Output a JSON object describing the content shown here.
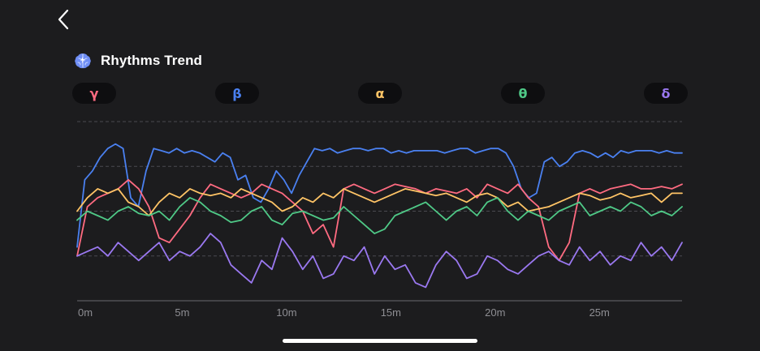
{
  "header": {
    "back_icon": "chevron-left-icon",
    "app_icon": "brain-icon",
    "title": "Rhythms Trend"
  },
  "bands": [
    {
      "symbol": "γ",
      "color": "#ff6b81"
    },
    {
      "symbol": "β",
      "color": "#4a80f0"
    },
    {
      "symbol": "α",
      "color": "#ffc466"
    },
    {
      "symbol": "θ",
      "color": "#4fc987"
    },
    {
      "symbol": "δ",
      "color": "#9a78f0"
    }
  ],
  "chart_data": {
    "type": "line",
    "x_ticks": [
      "0m",
      "5m",
      "10m",
      "15m",
      "20m",
      "25m"
    ],
    "xlim": [
      0,
      29
    ],
    "ylim": [
      0,
      4
    ],
    "grid": true,
    "series": [
      {
        "band": "β",
        "color": "#4a80f0",
        "values": [
          1.2,
          2.7,
          2.9,
          3.2,
          3.4,
          3.5,
          3.4,
          2.3,
          2.1,
          2.9,
          3.4,
          3.35,
          3.3,
          3.4,
          3.3,
          3.35,
          3.3,
          3.2,
          3.1,
          3.3,
          3.2,
          2.7,
          2.8,
          2.3,
          2.2,
          2.5,
          2.9,
          2.7,
          2.4,
          2.8,
          3.1,
          3.4,
          3.35,
          3.4,
          3.3,
          3.35,
          3.4,
          3.4,
          3.35,
          3.4,
          3.4,
          3.3,
          3.35,
          3.3,
          3.35,
          3.35,
          3.35,
          3.35,
          3.3,
          3.35,
          3.4,
          3.4,
          3.3,
          3.35,
          3.4,
          3.4,
          3.3,
          3.0,
          2.5,
          2.3,
          2.4,
          3.1,
          3.2,
          3.0,
          3.1,
          3.3,
          3.35,
          3.3,
          3.2,
          3.3,
          3.2,
          3.35,
          3.3,
          3.35,
          3.35,
          3.35,
          3.3,
          3.35,
          3.3,
          3.3
        ]
      },
      {
        "band": "γ",
        "color": "#ff6b81",
        "values": [
          1.0,
          2.1,
          2.3,
          2.4,
          2.5,
          2.7,
          2.5,
          2.1,
          1.4,
          1.3,
          1.6,
          1.9,
          2.3,
          2.6,
          2.5,
          2.4,
          2.3,
          2.4,
          2.6,
          2.5,
          2.4,
          2.2,
          2.0,
          1.5,
          1.7,
          1.2,
          2.5,
          2.6,
          2.5,
          2.4,
          2.5,
          2.6,
          2.55,
          2.5,
          2.4,
          2.5,
          2.45,
          2.4,
          2.5,
          2.3,
          2.6,
          2.5,
          2.4,
          2.6,
          2.3,
          2.1,
          1.2,
          0.9,
          1.3,
          2.4,
          2.5,
          2.4,
          2.5,
          2.55,
          2.6,
          2.5,
          2.5,
          2.55,
          2.5,
          2.6
        ]
      },
      {
        "band": "α",
        "color": "#ffc466",
        "values": [
          2.0,
          2.3,
          2.5,
          2.4,
          2.5,
          2.2,
          2.1,
          1.9,
          2.2,
          2.4,
          2.3,
          2.5,
          2.4,
          2.35,
          2.4,
          2.3,
          2.5,
          2.4,
          2.3,
          2.2,
          2.0,
          2.1,
          2.3,
          2.2,
          2.4,
          2.3,
          2.5,
          2.4,
          2.3,
          2.2,
          2.3,
          2.4,
          2.5,
          2.45,
          2.4,
          2.35,
          2.4,
          2.3,
          2.2,
          2.35,
          2.4,
          2.3,
          2.1,
          2.2,
          2.0,
          2.05,
          2.1,
          2.2,
          2.3,
          2.4,
          2.35,
          2.25,
          2.3,
          2.4,
          2.3,
          2.35,
          2.4,
          2.2,
          2.4,
          2.4
        ]
      },
      {
        "band": "θ",
        "color": "#4fc987",
        "values": [
          1.8,
          2.0,
          1.9,
          1.8,
          2.0,
          2.1,
          1.95,
          1.9,
          2.0,
          1.8,
          2.1,
          2.3,
          2.2,
          2.0,
          1.9,
          1.75,
          1.8,
          2.0,
          2.1,
          1.8,
          1.7,
          1.95,
          2.0,
          1.9,
          1.8,
          1.85,
          2.1,
          1.9,
          1.7,
          1.5,
          1.6,
          1.9,
          2.0,
          2.1,
          2.2,
          2.0,
          1.8,
          2.0,
          2.1,
          1.9,
          2.2,
          2.3,
          2.0,
          1.8,
          2.0,
          1.9,
          1.8,
          2.0,
          2.1,
          2.2,
          1.9,
          2.0,
          2.1,
          2.0,
          2.2,
          2.1,
          1.9,
          2.0,
          1.9,
          2.1
        ]
      },
      {
        "band": "δ",
        "color": "#9a78f0",
        "values": [
          1.0,
          1.1,
          1.2,
          1.0,
          1.3,
          1.1,
          0.9,
          1.1,
          1.3,
          0.9,
          1.1,
          1.0,
          1.2,
          1.5,
          1.3,
          0.8,
          0.6,
          0.4,
          0.9,
          0.7,
          1.4,
          1.1,
          0.7,
          1.0,
          0.5,
          0.6,
          1.0,
          0.9,
          1.2,
          0.6,
          1.0,
          0.7,
          0.8,
          0.4,
          0.3,
          0.8,
          1.1,
          0.9,
          0.5,
          0.6,
          1.0,
          0.9,
          0.7,
          0.6,
          0.8,
          1.0,
          1.1,
          0.9,
          0.8,
          1.2,
          0.9,
          1.1,
          0.8,
          1.0,
          0.9,
          1.3,
          1.0,
          1.2,
          0.9,
          1.3
        ]
      }
    ]
  }
}
